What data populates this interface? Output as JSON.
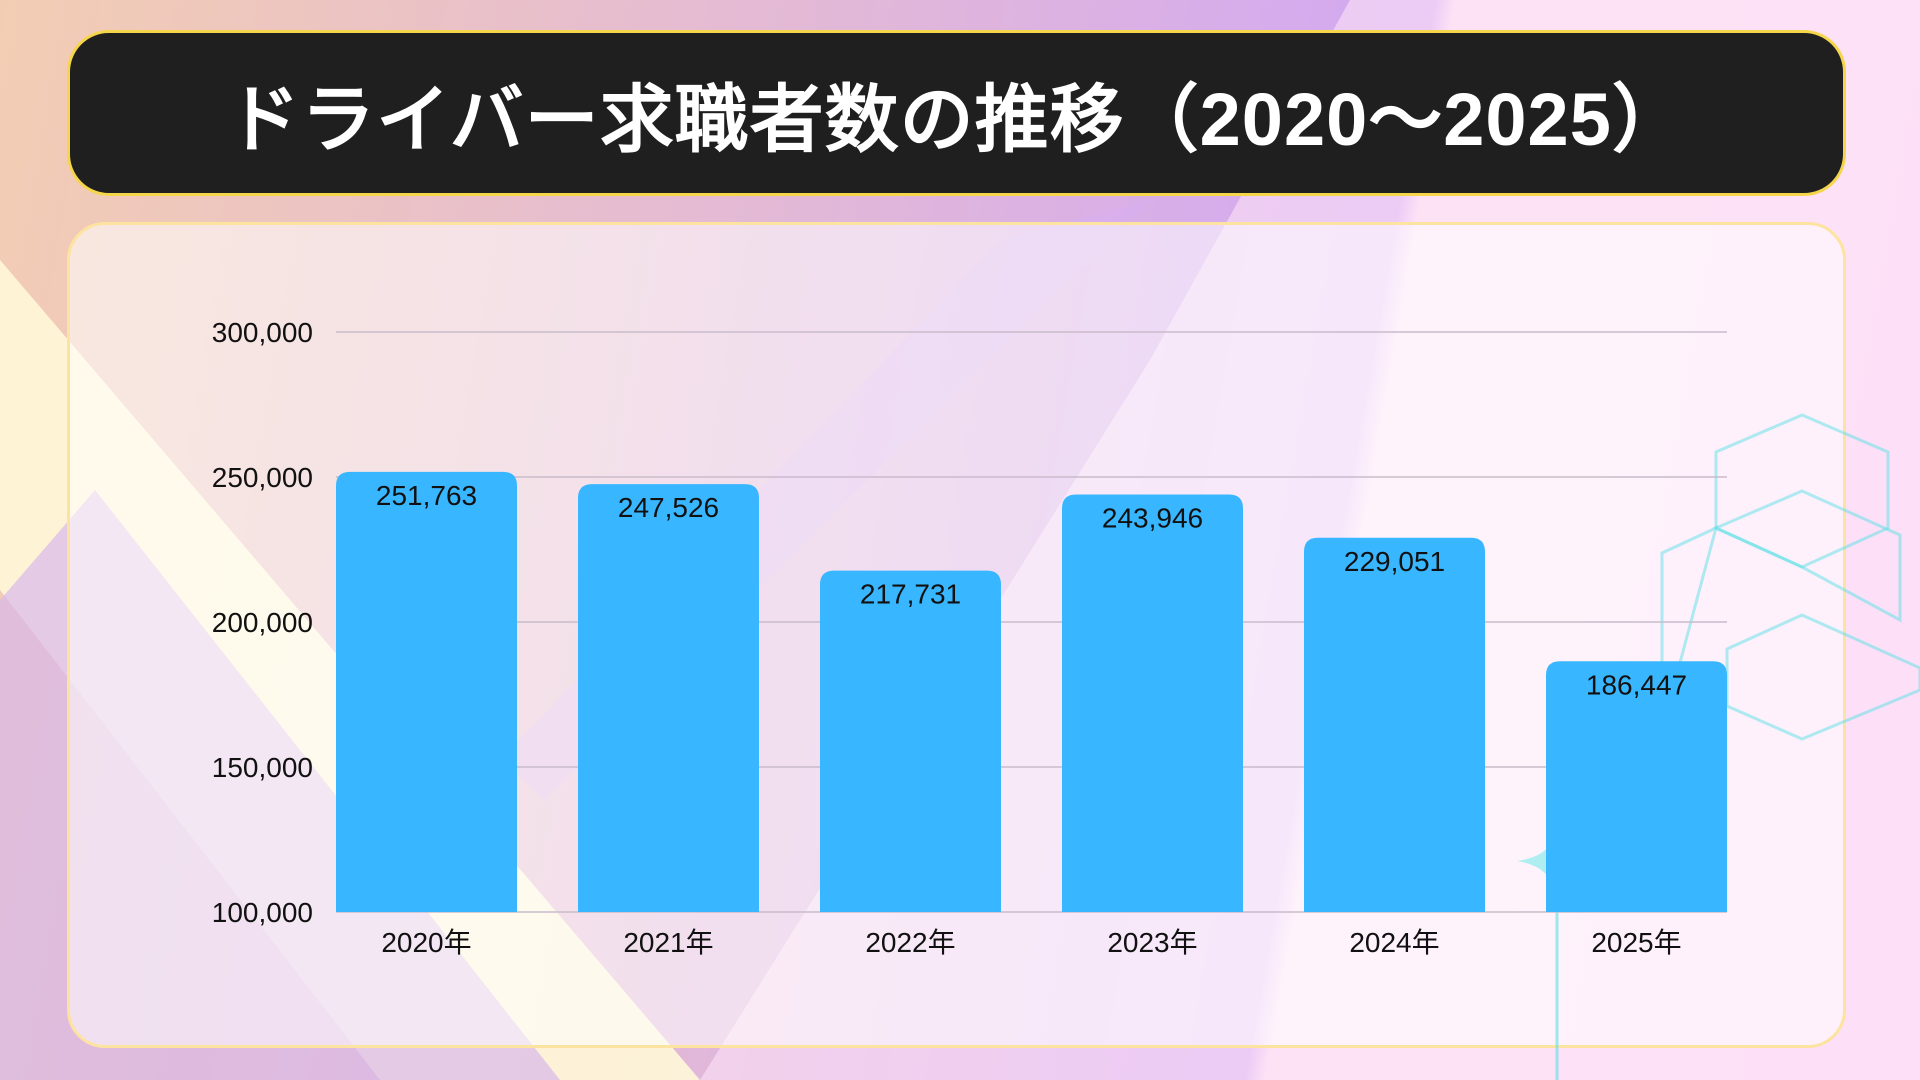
{
  "title": "ドライバー求職者数の推移（2020～2025）",
  "colors": {
    "bar": "#38b6ff",
    "title_bg": "#1f1f1f",
    "title_border": "#f5d64a",
    "hex": "#5ee0e6"
  },
  "chart_data": {
    "type": "bar",
    "title": "ドライバー求職者数の推移（2020～2025）",
    "categories": [
      "2020年",
      "2021年",
      "2022年",
      "2023年",
      "2024年",
      "2025年"
    ],
    "values": [
      251763,
      247526,
      217731,
      243946,
      229051,
      186447
    ],
    "value_labels": [
      "251,763",
      "247,526",
      "217,731",
      "243,946",
      "229,051",
      "186,447"
    ],
    "yticks": [
      100000,
      150000,
      200000,
      250000,
      300000
    ],
    "ytick_labels": [
      "100,000",
      "150,000",
      "200,000",
      "250,000",
      "300,000"
    ],
    "ylim": [
      100000,
      300000
    ],
    "xlabel": "",
    "ylabel": "",
    "grid": true,
    "legend": "none"
  }
}
